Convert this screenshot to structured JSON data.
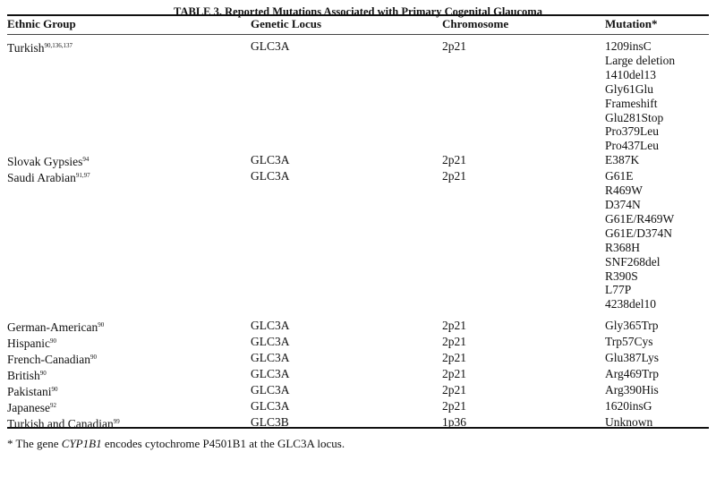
{
  "title": "TABLE 3.   Reported Mutations Associated with Primary Cogenital Glaucoma",
  "headers": [
    "Ethnic Group",
    "Genetic Locus",
    "Chromosome",
    "Mutation*"
  ],
  "rows": [
    {
      "group": "Turkish",
      "refs": "90,136,137",
      "locus": "GLC3A",
      "chromosome": "2p21",
      "mutations": [
        "1209insC",
        "Large deletion",
        "1410del13",
        "Gly61Glu",
        "Frameshift",
        "Glu281Stop",
        "Pro379Leu",
        "Pro437Leu"
      ]
    },
    {
      "group": "Slovak Gypsies",
      "refs": "94",
      "locus": "GLC3A",
      "chromosome": "2p21",
      "mutations": [
        "E387K"
      ]
    },
    {
      "group": "Saudi Arabian",
      "refs": "91,97",
      "locus": "GLC3A",
      "chromosome": "2p21",
      "mutations": [
        "G61E",
        "R469W",
        "D374N",
        "G61E/R469W",
        "G61E/D374N",
        "R368H",
        "SNF268del",
        "R390S",
        "L77P",
        "4238del10"
      ]
    },
    {
      "group": "German-American",
      "refs": "90",
      "locus": "GLC3A",
      "chromosome": "2p21",
      "mutations": [
        "Gly365Trp"
      ]
    },
    {
      "group": "Hispanic",
      "refs": "90",
      "locus": "GLC3A",
      "chromosome": "2p21",
      "mutations": [
        "Trp57Cys"
      ]
    },
    {
      "group": "French-Canadian",
      "refs": "90",
      "locus": "GLC3A",
      "chromosome": "2p21",
      "mutations": [
        "Glu387Lys"
      ]
    },
    {
      "group": "British",
      "refs": "90",
      "locus": "GLC3A",
      "chromosome": "2p21",
      "mutations": [
        "Arg469Trp"
      ]
    },
    {
      "group": "Pakistani",
      "refs": "90",
      "locus": "GLC3A",
      "chromosome": "2p21",
      "mutations": [
        "Arg390His"
      ]
    },
    {
      "group": "Japanese",
      "refs": "92",
      "locus": "GLC3A",
      "chromosome": "2p21",
      "mutations": [
        "1620insG"
      ]
    },
    {
      "group": "Turkish and Canadian",
      "refs": "99",
      "locus": "GLC3B",
      "chromosome": "1p36",
      "mutations": [
        "Unknown"
      ]
    }
  ],
  "footnote": {
    "prefix": "* The gene ",
    "gene": "CYP1B1",
    "suffix": " encodes cytochrome P4501B1 at the GLC3A locus."
  }
}
